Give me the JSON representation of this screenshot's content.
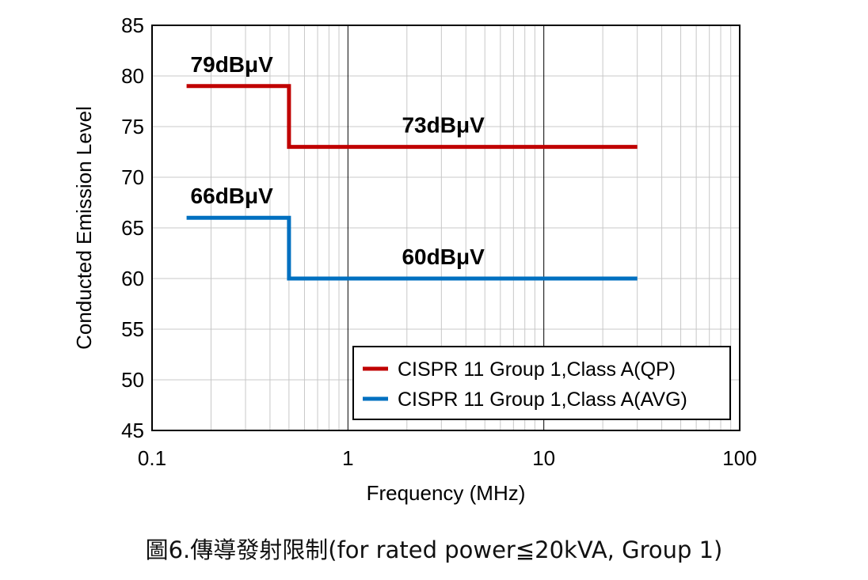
{
  "chart_data": {
    "type": "line",
    "xlabel": "Frequency (MHz)",
    "ylabel": "Conducted Emission Level",
    "x_scale": "log",
    "xlim": [
      0.1,
      100
    ],
    "ylim": [
      45,
      85
    ],
    "x_ticks": [
      "0.1",
      "1",
      "10",
      "100"
    ],
    "y_ticks": [
      "45",
      "50",
      "55",
      "60",
      "65",
      "70",
      "75",
      "80",
      "85"
    ],
    "grid": true,
    "legend_position": "bottom-right",
    "series": [
      {
        "name": "CISPR 11 Group 1,Class A(QP)",
        "color": "#C00000",
        "points": [
          [
            0.15,
            79
          ],
          [
            0.5,
            79
          ],
          [
            0.5,
            73
          ],
          [
            30,
            73
          ]
        ]
      },
      {
        "name": "CISPR 11 Group 1,Class A(AVG)",
        "color": "#0070C0",
        "points": [
          [
            0.15,
            66
          ],
          [
            0.5,
            66
          ],
          [
            0.5,
            60
          ],
          [
            30,
            60
          ]
        ]
      }
    ],
    "annotations": [
      {
        "text": "79dBμV",
        "x": 0.15,
        "y": 79
      },
      {
        "text": "73dBμV",
        "x": 1.8,
        "y": 73
      },
      {
        "text": "66dBμV",
        "x": 0.15,
        "y": 66
      },
      {
        "text": "60dBμV",
        "x": 1.8,
        "y": 60
      }
    ]
  },
  "caption": "圖6.傳導發射限制(for rated power≦20kVA, Group 1)"
}
